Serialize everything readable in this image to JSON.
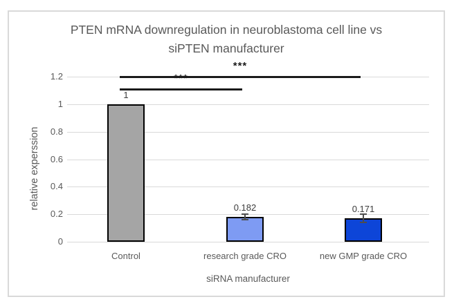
{
  "window": {
    "background": "#ffffff",
    "border_color": "#d9d9d9"
  },
  "chart_data": {
    "type": "bar",
    "title_line1": "PTEN mRNA downregulation in neuroblastoma cell line vs",
    "title_line2": "siPTEN manufacturer",
    "xlabel": "siRNA manufacturer",
    "ylabel": "relative experssion",
    "categories": [
      "Control",
      "research grade CRO",
      "new GMP grade CRO"
    ],
    "values": [
      1,
      0.182,
      0.171
    ],
    "value_labels": [
      "1",
      "0.182",
      "0.171"
    ],
    "bar_colors": [
      "#a5a5a5",
      "#7e9bf3",
      "#0d45d8"
    ],
    "bar_border_color": "#000000",
    "error_bars": [
      0,
      0.02,
      0.03
    ],
    "yticks": [
      0,
      0.2,
      0.4,
      0.6,
      0.8,
      1,
      1.2
    ],
    "ytick_labels": [
      "0",
      "0.2",
      "0.4",
      "0.6",
      "0.8",
      "1",
      "1.2"
    ],
    "ylim": [
      0,
      1.2
    ],
    "grid": true,
    "gridline_color": "#d9d9d9",
    "text_color": "#595959",
    "legend": false,
    "annotations": [
      {
        "from": 0,
        "to": 2,
        "label": "***"
      },
      {
        "from": 0,
        "to": 1,
        "label": "***"
      }
    ]
  }
}
